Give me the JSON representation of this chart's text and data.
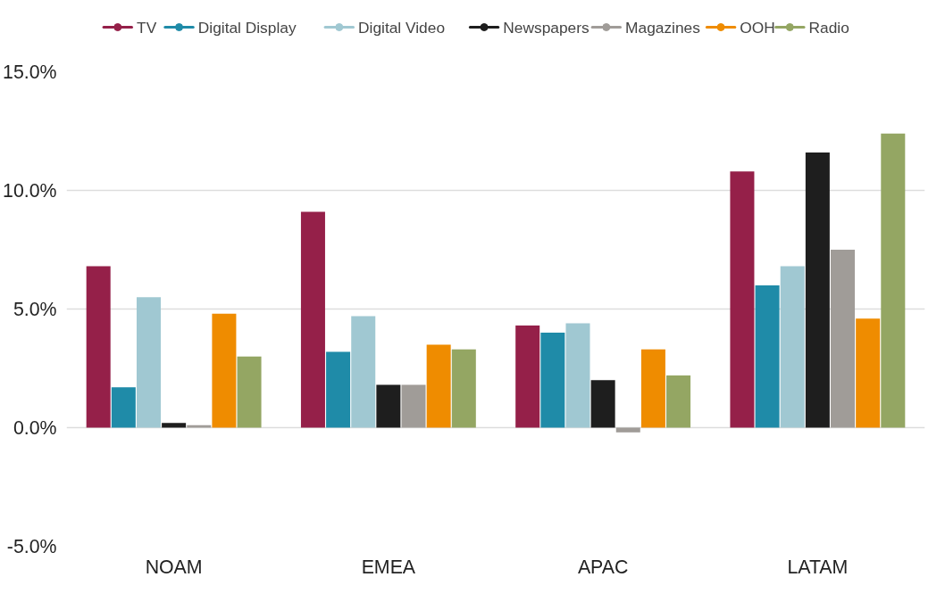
{
  "chart_data": {
    "type": "bar",
    "categories": [
      "NOAM",
      "EMEA",
      "APAC",
      "LATAM"
    ],
    "series": [
      {
        "name": "TV",
        "color": "#952049",
        "values": [
          6.8,
          9.1,
          4.3,
          10.8
        ]
      },
      {
        "name": "Digital Display",
        "color": "#1f8ba8",
        "values": [
          1.7,
          3.2,
          4.0,
          6.0
        ]
      },
      {
        "name": "Digital Video",
        "color": "#a0c8d2",
        "values": [
          5.5,
          4.7,
          4.4,
          6.8
        ]
      },
      {
        "name": "Newspapers",
        "color": "#1e1e1e",
        "values": [
          0.2,
          1.8,
          2.0,
          11.6
        ]
      },
      {
        "name": "Magazines",
        "color": "#a09c98",
        "values": [
          0.1,
          1.8,
          -0.2,
          7.5
        ]
      },
      {
        "name": "OOH",
        "color": "#ef8c00",
        "values": [
          4.8,
          3.5,
          3.3,
          4.6
        ]
      },
      {
        "name": "Radio",
        "color": "#94a663",
        "values": [
          3.0,
          3.3,
          2.2,
          12.4
        ]
      }
    ],
    "ylim": [
      -5,
      15
    ],
    "yticks": [
      {
        "value": -5,
        "label": "-5.0%"
      },
      {
        "value": 0,
        "label": "0.0%"
      },
      {
        "value": 5,
        "label": "5.0%"
      },
      {
        "value": 10,
        "label": "10.0%"
      },
      {
        "value": 15,
        "label": "15.0%"
      }
    ],
    "grid": "y",
    "legend": "top"
  }
}
